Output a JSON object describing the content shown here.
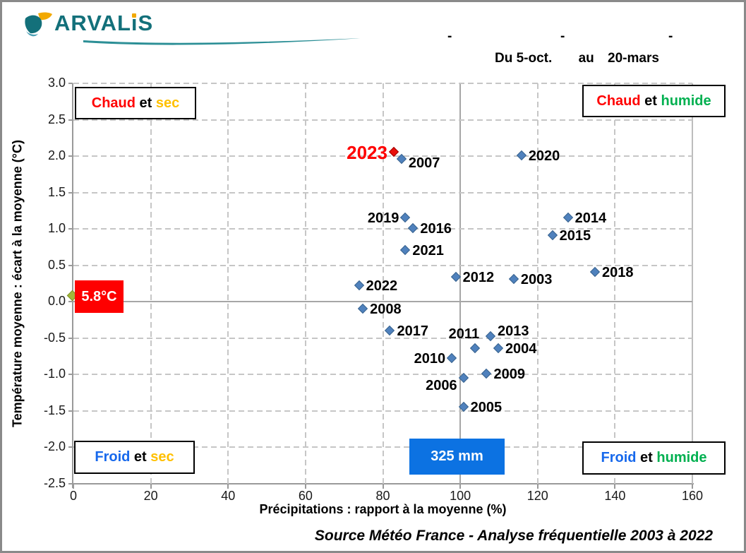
{
  "logo": {
    "brand_prefix": "ARVAL",
    "brand_i": "ı",
    "brand_suffix": "S",
    "full_name": "ARVALIS",
    "teal": "#13707a",
    "orange": "#f2a900"
  },
  "header": {
    "du": "Du",
    "start": "5-oct.",
    "au": "au",
    "end": "20-mars",
    "dashes": [
      "-",
      "-",
      "-"
    ]
  },
  "quadrant_labels": [
    {
      "key": "chaud-sec",
      "segments": [
        {
          "t": "Chaud",
          "c": "#ff0000"
        },
        {
          "t": " et ",
          "c": "#000000"
        },
        {
          "t": "sec",
          "c": "#ffc000"
        }
      ]
    },
    {
      "key": "chaud-humide",
      "segments": [
        {
          "t": "Chaud",
          "c": "#ff0000"
        },
        {
          "t": " et ",
          "c": "#000000"
        },
        {
          "t": "humide",
          "c": "#00b050"
        }
      ]
    },
    {
      "key": "froid-sec",
      "segments": [
        {
          "t": "Froid",
          "c": "#1668ec"
        },
        {
          "t": " et ",
          "c": "#000000"
        },
        {
          "t": "sec",
          "c": "#ffc000"
        }
      ]
    },
    {
      "key": "froid-humide",
      "segments": [
        {
          "t": "Froid",
          "c": "#1668ec"
        },
        {
          "t": " et ",
          "c": "#000000"
        },
        {
          "t": "humide",
          "c": "#00b050"
        }
      ]
    }
  ],
  "annotations": {
    "mean_temperature": "5.8°C",
    "mean_temperature_bg": "#fe0000",
    "mean_precipitation": "325 mm",
    "mean_precipitation_bg": "#0c72e2"
  },
  "source": "Source Météo France - Analyse fréquentielle 2003 à 2022",
  "chart_data": {
    "type": "scatter",
    "title": "Du 5-oct. au 20-mars",
    "xlabel": "Précipitations : rapport à la moyenne (%)",
    "ylabel": "Température moyenne : écart à la moyenne (°C)",
    "xlim": [
      0,
      160
    ],
    "ylim": [
      -2.5,
      3.0
    ],
    "x_ticks": [
      0,
      20,
      40,
      60,
      80,
      100,
      120,
      140,
      160
    ],
    "y_tick_labels": [
      "3.0",
      "2.5",
      "2.0",
      "1.5",
      "1.0",
      "0.5",
      "0.0",
      "-0.5",
      "-1.0",
      "-1.5",
      "-2.0",
      "-2.5"
    ],
    "reference_x": 100,
    "reference_y": 0,
    "grid": "dashed",
    "legend": "none",
    "marker_color": "#4f81bd",
    "highlight_color": "#e8100c",
    "points": [
      {
        "label": "2003",
        "x": 114,
        "y": 0.3,
        "side": "right"
      },
      {
        "label": "2004",
        "x": 110,
        "y": -0.65,
        "side": "right"
      },
      {
        "label": "2005",
        "x": 101,
        "y": -1.45,
        "side": "right"
      },
      {
        "label": "2006",
        "x": 101,
        "y": -1.05,
        "side": "left",
        "dy": 10
      },
      {
        "label": "2007",
        "x": 85,
        "y": 1.95,
        "side": "right",
        "dy": 5
      },
      {
        "label": "2008",
        "x": 75,
        "y": -0.1,
        "side": "right"
      },
      {
        "label": "2009",
        "x": 107,
        "y": -1.0,
        "side": "right"
      },
      {
        "label": "2010",
        "x": 98,
        "y": -0.78,
        "side": "left"
      },
      {
        "label": "2011",
        "x": 104,
        "y": -0.65,
        "side": "above"
      },
      {
        "label": "2012",
        "x": 99,
        "y": 0.33,
        "side": "right"
      },
      {
        "label": "2013",
        "x": 108,
        "y": -0.48,
        "side": "right",
        "dy": -8
      },
      {
        "label": "2014",
        "x": 128,
        "y": 1.15,
        "side": "right"
      },
      {
        "label": "2015",
        "x": 124,
        "y": 0.9,
        "side": "right"
      },
      {
        "label": "2016",
        "x": 88,
        "y": 1.0,
        "side": "right"
      },
      {
        "label": "2017",
        "x": 82,
        "y": -0.4,
        "side": "right"
      },
      {
        "label": "2018",
        "x": 135,
        "y": 0.4,
        "side": "right"
      },
      {
        "label": "2019",
        "x": 86,
        "y": 1.15,
        "side": "left"
      },
      {
        "label": "2020",
        "x": 116,
        "y": 2.0,
        "side": "right"
      },
      {
        "label": "2021",
        "x": 86,
        "y": 0.7,
        "side": "right"
      },
      {
        "label": "2022",
        "x": 74,
        "y": 0.22,
        "side": "right"
      },
      {
        "label": "2023",
        "x": 83,
        "y": 2.05,
        "side": "left",
        "highlight": true
      }
    ]
  }
}
